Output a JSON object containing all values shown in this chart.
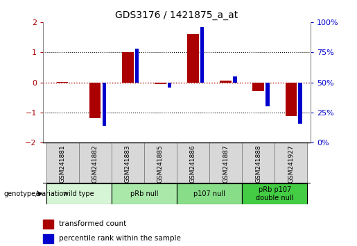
{
  "title": "GDS3176 / 1421875_a_at",
  "samples": [
    "GSM241881",
    "GSM241882",
    "GSM241883",
    "GSM241885",
    "GSM241886",
    "GSM241887",
    "GSM241888",
    "GSM241927"
  ],
  "red_values": [
    0.02,
    -1.18,
    1.0,
    -0.05,
    1.6,
    0.07,
    -0.28,
    -1.12
  ],
  "blue_values_pct": [
    50,
    14,
    78,
    46,
    96,
    55,
    30,
    16
  ],
  "groups": [
    {
      "label": "wild type",
      "start": 0,
      "end": 2,
      "color": "#d6f5d6"
    },
    {
      "label": "pRb null",
      "start": 2,
      "end": 4,
      "color": "#aae8aa"
    },
    {
      "label": "p107 null",
      "start": 4,
      "end": 6,
      "color": "#88dd88"
    },
    {
      "label": "pRb p107\ndouble null",
      "start": 6,
      "end": 8,
      "color": "#44cc44"
    }
  ],
  "ylim": [
    -2,
    2
  ],
  "yticks_left": [
    -2,
    -1,
    0,
    1,
    2
  ],
  "yticks_right_pct": [
    0,
    25,
    50,
    75,
    100
  ],
  "red_color": "#aa0000",
  "blue_color": "#0000cc",
  "legend_red": "transformed count",
  "legend_blue": "percentile rank within the sample"
}
